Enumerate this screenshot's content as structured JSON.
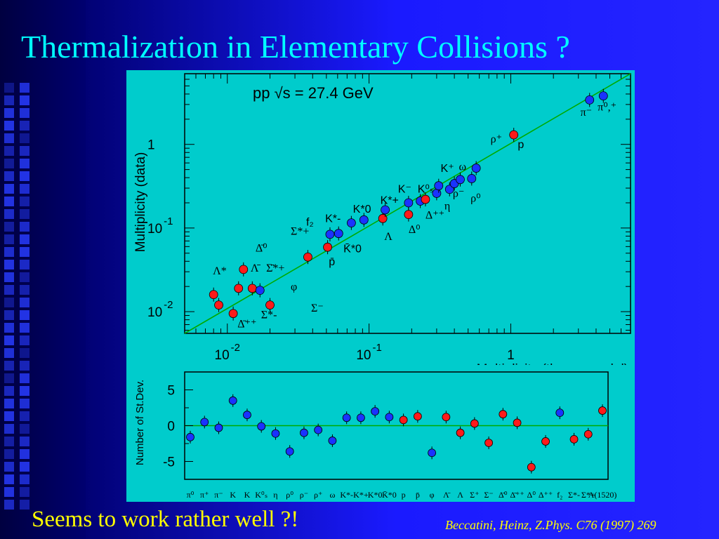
{
  "title": "Thermalization in Elementary Collisions ?",
  "footer": {
    "left_text": "Seems to work rather well ?!",
    "citation": "Beccatini, Heinz, Z.Phys. C76 (1997) 269"
  },
  "colors": {
    "title": "#00ffff",
    "panel": "#00cccc",
    "fit_line": "#00aa00",
    "marker_red": "#ff1a1a",
    "marker_blue": "#1a33ff",
    "footer_text": "#ffff00"
  },
  "chart_data": [
    {
      "type": "scatter",
      "title": "pp  √s = 27.4 GeV",
      "xlabel": "Multiplicity (therm. model)",
      "ylabel": "Multiplicity (data)",
      "xscale": "log",
      "yscale": "log",
      "xlim": [
        0.005,
        7
      ],
      "ylim": [
        0.0055,
        7
      ],
      "x_ticks": [
        {
          "base": "10",
          "exp": "-2"
        },
        {
          "base": "10",
          "exp": "-1"
        },
        {
          "base": "1",
          "exp": ""
        }
      ],
      "y_ticks": [
        {
          "base": "10",
          "exp": "-2"
        },
        {
          "base": "10",
          "exp": "-1"
        },
        {
          "base": "1",
          "exp": ""
        }
      ],
      "fit_line": {
        "from": [
          0.005,
          0.0055
        ],
        "to": [
          7,
          7
        ]
      },
      "points": [
        {
          "x": 0.008,
          "y": 0.016,
          "color": "red"
        },
        {
          "x": 0.0087,
          "y": 0.012,
          "color": "red"
        },
        {
          "x": 0.011,
          "y": 0.0095,
          "color": "red"
        },
        {
          "x": 0.012,
          "y": 0.019,
          "color": "red"
        },
        {
          "x": 0.013,
          "y": 0.032,
          "color": "red"
        },
        {
          "x": 0.015,
          "y": 0.019,
          "color": "red"
        },
        {
          "x": 0.017,
          "y": 0.018,
          "color": "blue"
        },
        {
          "x": 0.02,
          "y": 0.012,
          "color": "red"
        },
        {
          "x": 0.037,
          "y": 0.045,
          "color": "red"
        },
        {
          "x": 0.051,
          "y": 0.059,
          "color": "red"
        },
        {
          "x": 0.053,
          "y": 0.084,
          "color": "blue"
        },
        {
          "x": 0.061,
          "y": 0.086,
          "color": "blue"
        },
        {
          "x": 0.075,
          "y": 0.115,
          "color": "blue"
        },
        {
          "x": 0.092,
          "y": 0.125,
          "color": "blue"
        },
        {
          "x": 0.125,
          "y": 0.13,
          "color": "red"
        },
        {
          "x": 0.13,
          "y": 0.165,
          "color": "blue"
        },
        {
          "x": 0.19,
          "y": 0.145,
          "color": "red"
        },
        {
          "x": 0.19,
          "y": 0.2,
          "color": "blue"
        },
        {
          "x": 0.23,
          "y": 0.21,
          "color": "blue"
        },
        {
          "x": 0.25,
          "y": 0.22,
          "color": "red"
        },
        {
          "x": 0.3,
          "y": 0.26,
          "color": "blue"
        },
        {
          "x": 0.31,
          "y": 0.32,
          "color": "blue"
        },
        {
          "x": 0.37,
          "y": 0.29,
          "color": "blue"
        },
        {
          "x": 0.4,
          "y": 0.34,
          "color": "blue"
        },
        {
          "x": 0.44,
          "y": 0.38,
          "color": "blue"
        },
        {
          "x": 0.53,
          "y": 0.39,
          "color": "blue"
        },
        {
          "x": 0.57,
          "y": 0.52,
          "color": "blue"
        },
        {
          "x": 1.05,
          "y": 1.3,
          "color": "red"
        },
        {
          "x": 3.6,
          "y": 3.4,
          "color": "blue"
        },
        {
          "x": 4.5,
          "y": 3.8,
          "color": "blue"
        }
      ],
      "annotations": [
        {
          "text": "π⁻",
          "x": 3.1,
          "y": 2.2,
          "font": "serif"
        },
        {
          "text": "π⁰,⁺",
          "x": 4.1,
          "y": 2.55,
          "font": "serif"
        },
        {
          "text": "ρ⁺",
          "x": 0.72,
          "y": 1.05,
          "font": "serif"
        },
        {
          "text": "p",
          "x": 1.12,
          "y": 0.9,
          "font": "sans"
        },
        {
          "text": "K⁺",
          "x": 0.32,
          "y": 0.47,
          "font": "sans"
        },
        {
          "text": "ω",
          "x": 0.43,
          "y": 0.49,
          "font": "serif"
        },
        {
          "text": "K⁻",
          "x": 0.16,
          "y": 0.265,
          "font": "sans"
        },
        {
          "text": "K⁰ₛ",
          "x": 0.22,
          "y": 0.265,
          "font": "sans"
        },
        {
          "text": "K*+",
          "x": 0.12,
          "y": 0.195,
          "font": "sans"
        },
        {
          "text": "K*0",
          "x": 0.077,
          "y": 0.152,
          "font": "sans"
        },
        {
          "text": "K*-",
          "x": 0.049,
          "y": 0.118,
          "font": "sans"
        },
        {
          "text": "f₂",
          "x": 0.036,
          "y": 0.107,
          "font": "sans"
        },
        {
          "text": "ρ⁻",
          "x": 0.39,
          "y": 0.236,
          "font": "serif"
        },
        {
          "text": "ρ⁰",
          "x": 0.52,
          "y": 0.206,
          "font": "serif"
        },
        {
          "text": "η",
          "x": 0.34,
          "y": 0.167,
          "font": "serif"
        },
        {
          "text": "Δ⁺⁺",
          "x": 0.25,
          "y": 0.13,
          "font": "serif"
        },
        {
          "text": "Δ⁰",
          "x": 0.19,
          "y": 0.087,
          "font": "serif"
        },
        {
          "text": "Λ",
          "x": 0.128,
          "y": 0.072,
          "font": "serif"
        },
        {
          "text": "Σ*+",
          "x": 0.028,
          "y": 0.083,
          "font": "serif"
        },
        {
          "text": "K̄*0",
          "x": 0.066,
          "y": 0.051,
          "font": "sans"
        },
        {
          "text": "p̄",
          "x": 0.052,
          "y": 0.036,
          "font": "sans"
        },
        {
          "text": "Δ̄⁰",
          "x": 0.0158,
          "y": 0.052,
          "font": "serif"
        },
        {
          "text": "Λ̄",
          "x": 0.0146,
          "y": 0.03,
          "font": "serif"
        },
        {
          "text": "Σ̄*+",
          "x": 0.0188,
          "y": 0.03,
          "font": "serif"
        },
        {
          "text": "Λ*",
          "x": 0.0079,
          "y": 0.028,
          "font": "serif"
        },
        {
          "text": "φ",
          "x": 0.028,
          "y": 0.018,
          "font": "serif"
        },
        {
          "text": "Σ⁻",
          "x": 0.039,
          "y": 0.01,
          "font": "serif"
        },
        {
          "text": "Σ*-",
          "x": 0.0173,
          "y": 0.0083,
          "font": "serif"
        },
        {
          "text": "Δ̄⁺⁺",
          "x": 0.0118,
          "y": 0.0065,
          "font": "serif"
        }
      ]
    },
    {
      "type": "scatter",
      "ylabel": "Number of St.Dev.",
      "ylim": [
        -7.5,
        7.5
      ],
      "y_ticks": [
        "5",
        "0",
        "-5"
      ],
      "zero_line": true,
      "categories": [
        "π⁰",
        "π⁺",
        "π⁻",
        "K",
        "K",
        "K⁰ₛ",
        "η",
        "ρ⁰",
        "ρ⁻",
        "ρ⁺",
        "ω",
        "K*-",
        "K*+",
        "K*0",
        "K̄*0",
        "p",
        "p̄",
        "φ",
        "Λ̄",
        "Λ",
        "Σ⁺",
        "Σ⁻",
        "Δ̄⁰",
        "Δ̄⁺⁺",
        "Δ⁰",
        "Δ⁺⁺",
        "f₂",
        "Σ*-",
        "Σ*+",
        "Λ(1520)"
      ],
      "values": [
        -1.6,
        0.5,
        -0.3,
        3.5,
        1.5,
        -0.1,
        -1.1,
        -3.6,
        -1.0,
        -0.6,
        -2.1,
        1.1,
        1.1,
        2.0,
        1.2,
        0.8,
        1.3,
        -3.8,
        1.2,
        -1.0,
        0.3,
        -2.4,
        1.6,
        0.4,
        -5.8,
        -2.2,
        1.8,
        -1.9,
        -1.2,
        2.1
      ],
      "colors": [
        "blue",
        "blue",
        "blue",
        "blue",
        "blue",
        "blue",
        "blue",
        "blue",
        "blue",
        "blue",
        "blue",
        "blue",
        "blue",
        "blue",
        "blue",
        "red",
        "red",
        "blue",
        "red",
        "red",
        "red",
        "red",
        "red",
        "red",
        "red",
        "red",
        "blue",
        "red",
        "red",
        "red"
      ]
    }
  ]
}
